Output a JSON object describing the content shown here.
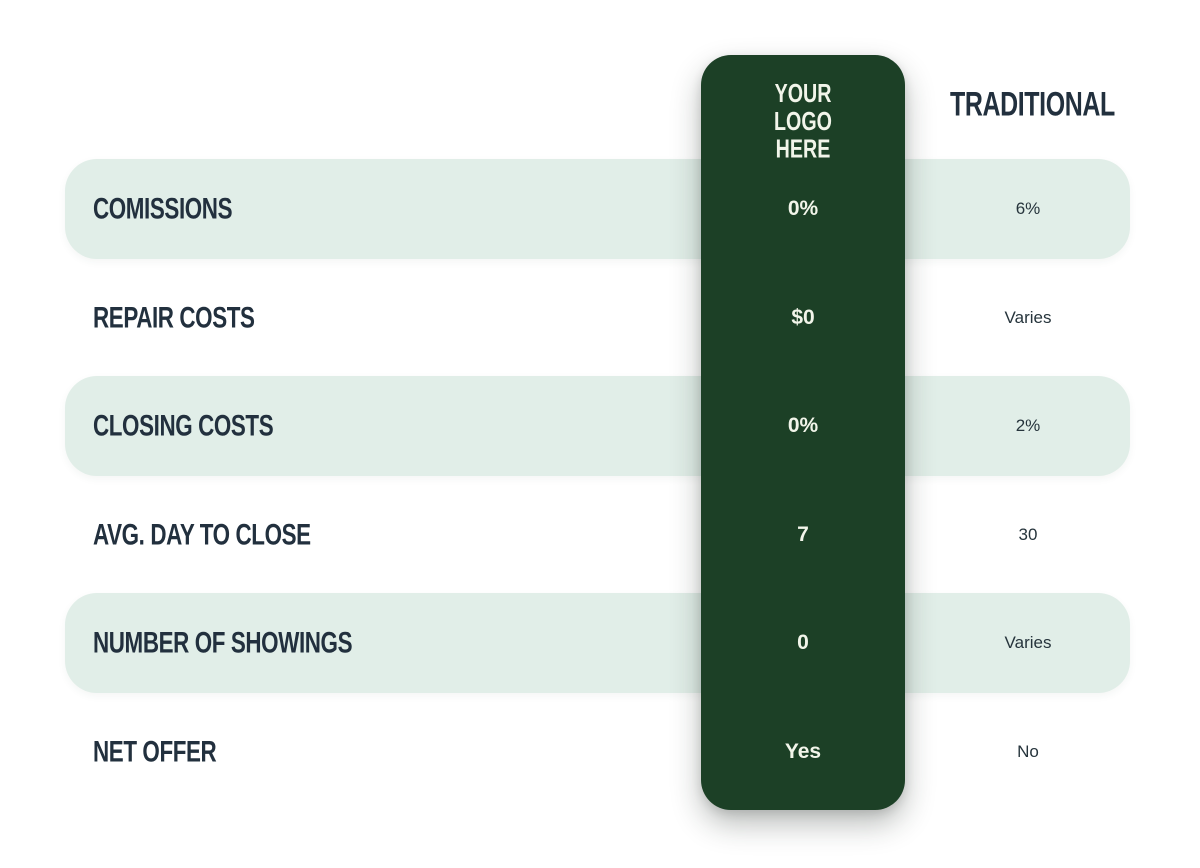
{
  "chart_data": {
    "type": "table",
    "title": "",
    "columns": [
      "",
      "YOUR LOGO HERE",
      "TRADITIONAL"
    ],
    "rows": [
      [
        "COMISSIONS",
        "0%",
        "6%"
      ],
      [
        "REPAIR COSTS",
        "$0",
        "Varies"
      ],
      [
        "CLOSING COSTS",
        "0%",
        "2%"
      ],
      [
        "AVG. DAY TO CLOSE",
        "7",
        "30"
      ],
      [
        "NUMBER OF SHOWINGS",
        "0",
        "Varies"
      ],
      [
        "NET OFFER",
        "Yes",
        "No"
      ]
    ],
    "layout": {
      "highlight_column": "YOUR LOGO HERE",
      "striped_rows": "alternating mint pills starting with first row"
    }
  },
  "colors": {
    "dark_green": "#1c4026",
    "mint_row": "#e1eee8",
    "heading_text": "#22303e",
    "traditional_value_text": "#26343c",
    "logo_column_text": "#f2f5ea",
    "background": "#ffffff"
  }
}
